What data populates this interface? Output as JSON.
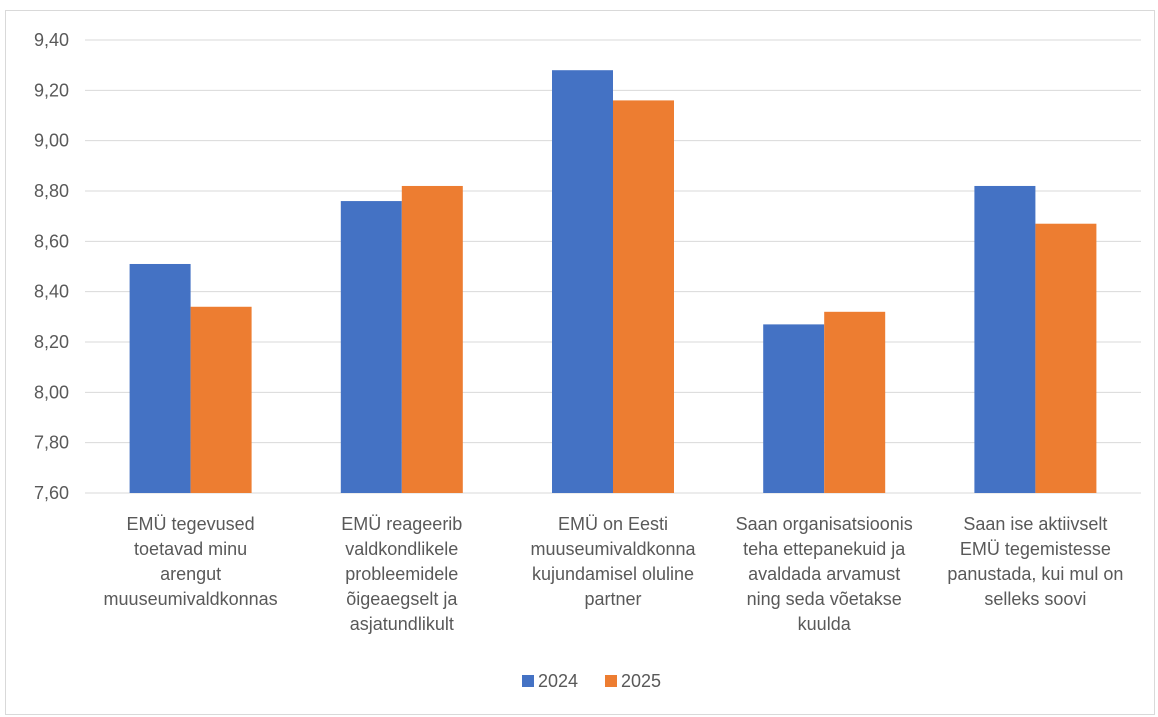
{
  "chart_data": {
    "type": "bar",
    "categories": [
      [
        "EMÜ tegevused",
        "toetavad minu",
        "arengut",
        "muuseumivaldkonnas"
      ],
      [
        "EMÜ reageerib",
        "valdkondlikele",
        "probleemidele",
        "õigeaegselt ja",
        "asjatundlikult"
      ],
      [
        "EMÜ on Eesti",
        "muuseumivaldkonna",
        "kujundamisel oluline",
        "partner"
      ],
      [
        "Saan organisatsioonis",
        "teha ettepanekuid ja",
        "avaldada arvamust",
        "ning seda võetakse",
        "kuulda"
      ],
      [
        "Saan ise aktiivselt",
        "EMÜ tegemistesse",
        "panustada, kui mul on",
        "selleks soovi"
      ]
    ],
    "series": [
      {
        "name": "2024",
        "color": "#4472c4",
        "values": [
          8.51,
          8.76,
          9.28,
          8.27,
          8.82
        ]
      },
      {
        "name": "2025",
        "color": "#ed7d31",
        "values": [
          8.34,
          8.82,
          9.16,
          8.32,
          8.67
        ]
      }
    ],
    "ylim": [
      7.6,
      9.4
    ],
    "yticks": [
      "7,60",
      "7,80",
      "8,00",
      "8,20",
      "8,40",
      "8,60",
      "8,80",
      "9,00",
      "9,20",
      "9,40"
    ],
    "ytick_values": [
      7.6,
      7.8,
      8.0,
      8.2,
      8.4,
      8.6,
      8.8,
      9.0,
      9.2,
      9.4
    ],
    "grid": true,
    "legend_position": "bottom",
    "gridline_color": "#d9d9d9",
    "title": "",
    "xlabel": "",
    "ylabel": ""
  }
}
